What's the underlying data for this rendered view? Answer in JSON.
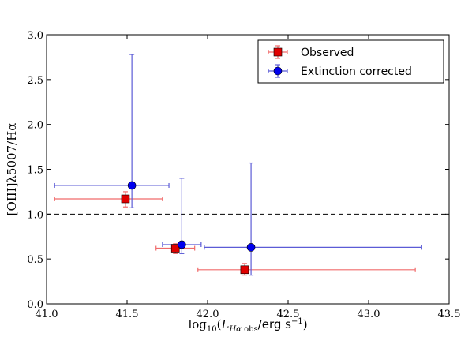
{
  "chart_data": {
    "type": "scatter",
    "xlabel": "log₁₀(L_Hα obs/erg s⁻¹)",
    "ylabel": "[OIII]λ5007/Hα",
    "xlim": [
      41.0,
      43.5
    ],
    "ylim": [
      0.0,
      3.0
    ],
    "xticks": [
      41.0,
      41.5,
      42.0,
      42.5,
      43.0,
      43.5
    ],
    "xtick_labels": [
      "41.0",
      "41.5",
      "42.0",
      "42.5",
      "43.0",
      "43.5"
    ],
    "yticks": [
      0.0,
      0.5,
      1.0,
      1.5,
      2.0,
      2.5,
      3.0
    ],
    "ytick_labels": [
      "0.0",
      "0.5",
      "1.0",
      "1.5",
      "2.0",
      "2.5",
      "3.0"
    ],
    "grid": false,
    "legend_position": "top-right",
    "reference_line": {
      "y": 1.0,
      "style": "dashed",
      "color": "#000000"
    },
    "series": [
      {
        "name": "Observed",
        "marker": "square",
        "marker_color": "#e00000",
        "errorbar_color": "#f06b6b",
        "points": [
          {
            "x": 41.49,
            "y": 1.17,
            "xerr": [
              0.44,
              0.23
            ],
            "yerr": [
              0.09,
              0.08
            ]
          },
          {
            "x": 41.8,
            "y": 0.62,
            "xerr": [
              0.12,
              0.12
            ],
            "yerr": [
              0.06,
              0.05
            ]
          },
          {
            "x": 42.23,
            "y": 0.38,
            "xerr": [
              0.29,
              1.06
            ],
            "yerr": [
              0.06,
              0.07
            ]
          }
        ]
      },
      {
        "name": "Extinction corrected",
        "marker": "circle",
        "marker_color": "#0000ee",
        "errorbar_color": "#5b5bd6",
        "points": [
          {
            "x": 41.53,
            "y": 1.32,
            "xerr": [
              0.48,
              0.23
            ],
            "yerr": [
              0.25,
              1.46
            ]
          },
          {
            "x": 41.84,
            "y": 0.66,
            "xerr": [
              0.12,
              0.12
            ],
            "yerr": [
              0.1,
              0.74
            ]
          },
          {
            "x": 42.27,
            "y": 0.63,
            "xerr": [
              0.29,
              1.06
            ],
            "yerr": [
              0.31,
              0.94
            ]
          }
        ]
      }
    ]
  }
}
